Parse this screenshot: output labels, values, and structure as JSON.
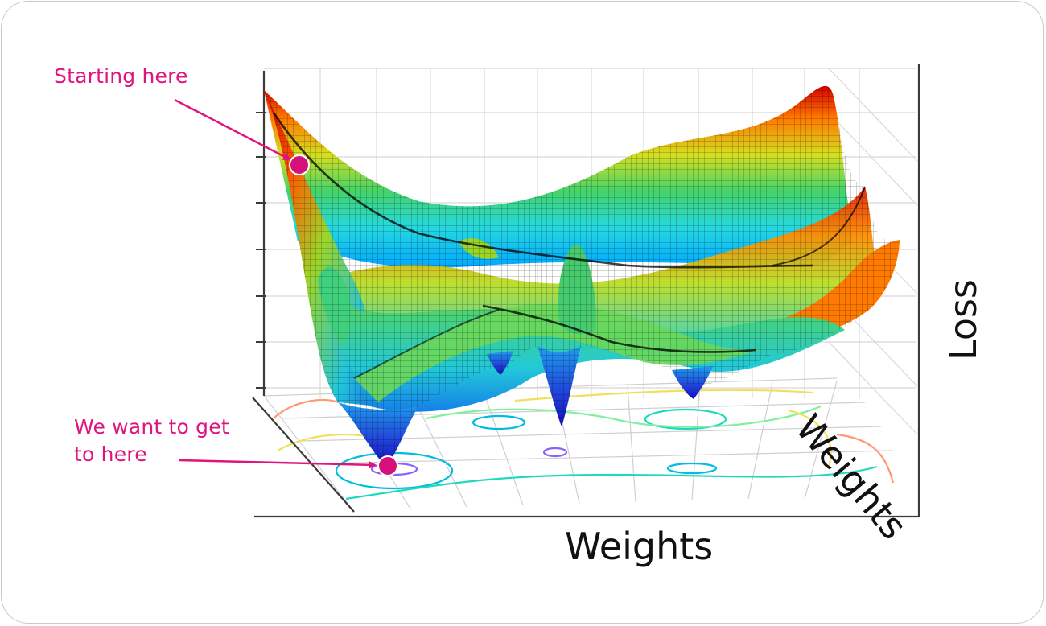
{
  "annotations": {
    "start": "Starting here",
    "goal_line1": "We want to get",
    "goal_line2": "to here"
  },
  "axes": {
    "x": "Weights",
    "depth": "Weights",
    "z": "Loss"
  },
  "colors": {
    "annotation": "#e0147f",
    "marker_fill": "#d6107a",
    "surface_colormap": [
      "#1a1acc",
      "#00a8ff",
      "#25d8e0",
      "#43d36a",
      "#d8e020",
      "#ff8c00",
      "#d40000"
    ]
  }
}
